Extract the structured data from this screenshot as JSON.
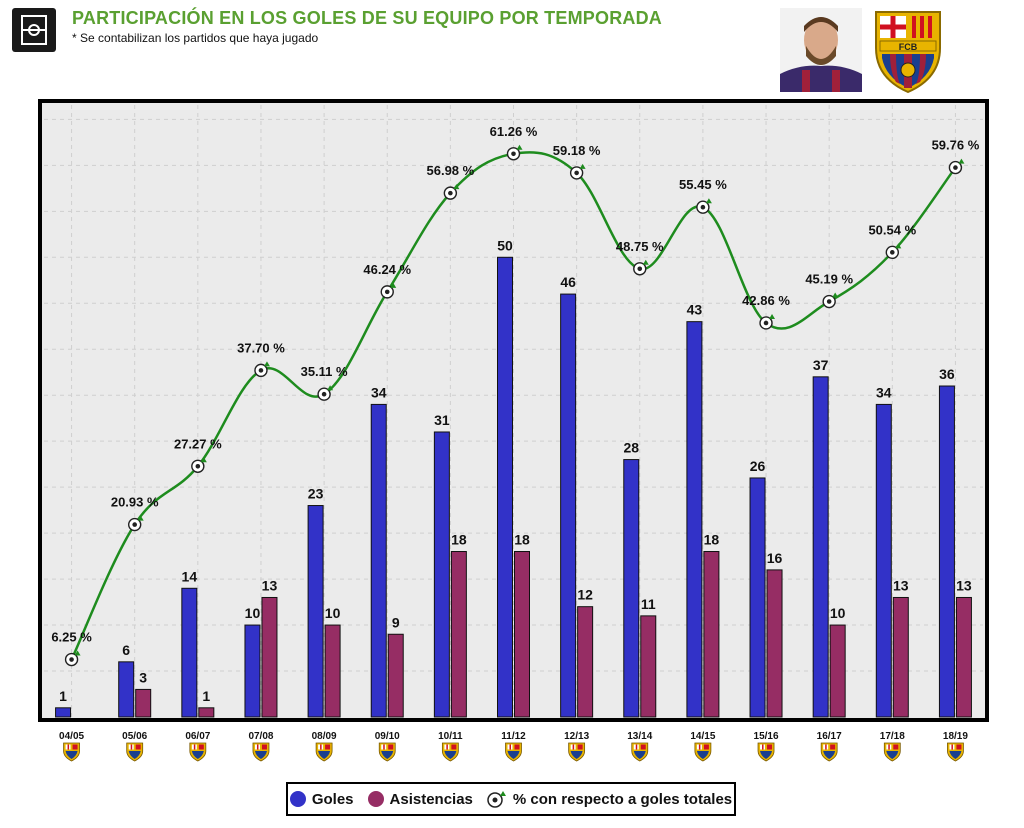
{
  "header": {
    "title": "PARTICIPACIÓN EN LOS GOLES DE SU EQUIPO POR TEMPORADA",
    "subtitle": "* Se contabilizan los partidos que haya jugado",
    "crest_text": "FCB"
  },
  "colors": {
    "goles": "#3232c8",
    "asistencias": "#962d64",
    "line": "#1e8c1e",
    "title": "#5aa031",
    "plot_bg": "#ebebeb"
  },
  "legend": {
    "goles": "Goles",
    "asistencias": "Asistencias",
    "porcentaje": "% con respecto a goles totales"
  },
  "chart_data": {
    "type": "bar",
    "categories": [
      "04/05",
      "05/06",
      "06/07",
      "07/08",
      "08/09",
      "09/10",
      "10/11",
      "11/12",
      "12/13",
      "13/14",
      "14/15",
      "15/16",
      "16/17",
      "17/18",
      "18/19"
    ],
    "series": [
      {
        "name": "Goles",
        "values": [
          1,
          6,
          14,
          10,
          23,
          34,
          31,
          50,
          46,
          28,
          43,
          26,
          37,
          34,
          36
        ]
      },
      {
        "name": "Asistencias",
        "values": [
          0,
          3,
          1,
          13,
          10,
          9,
          18,
          18,
          12,
          11,
          18,
          16,
          10,
          13,
          13
        ]
      }
    ],
    "line_series": {
      "name": "% con respecto a goles totales",
      "values": [
        6.25,
        20.93,
        27.27,
        37.7,
        35.11,
        46.24,
        56.98,
        61.26,
        59.18,
        48.75,
        55.45,
        42.86,
        45.19,
        50.54,
        59.76
      ],
      "labels": [
        "6.25 %",
        "20.93 %",
        "27.27 %",
        "37.70 %",
        "35.11 %",
        "46.24 %",
        "56.98 %",
        "61.26 %",
        "59.18 %",
        "48.75 %",
        "55.45 %",
        "42.86 %",
        "45.19 %",
        "50.54 %",
        "59.76 %"
      ]
    },
    "bar_labels": {
      "goles": [
        "1",
        "6",
        "14",
        "10",
        "23",
        "34",
        "31",
        "50",
        "46",
        "28",
        "43",
        "26",
        "37",
        "34",
        "36"
      ],
      "asistencias": [
        "",
        "3",
        "1",
        "13",
        "10",
        "9",
        "18",
        "18",
        "12",
        "11",
        "18",
        "16",
        "10",
        "13",
        "13"
      ]
    },
    "ylim": [
      0,
      67
    ],
    "line_ylim": [
      0,
      67
    ],
    "grid": true,
    "legend_position": "bottom"
  }
}
